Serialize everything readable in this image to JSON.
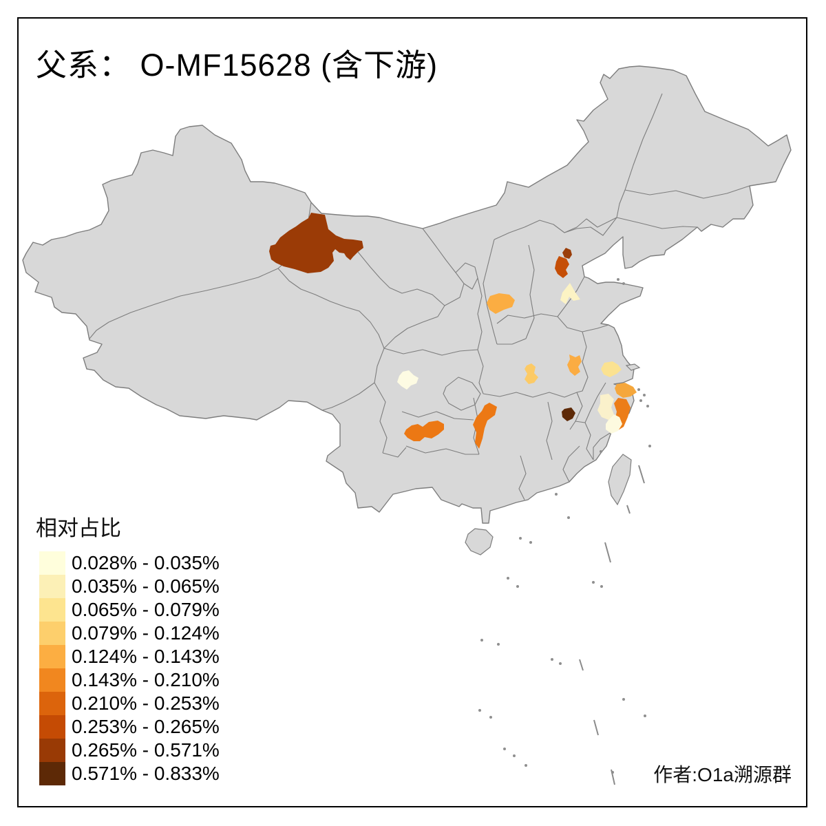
{
  "title": "父系：  O-MF15628 (含下游)",
  "attribution": "作者:O1a溯源群",
  "legend": {
    "title": "相对占比",
    "classes": [
      {
        "label": "0.028% - 0.035%",
        "color": "#FFFEDC"
      },
      {
        "label": "0.035% - 0.065%",
        "color": "#FCF0B6"
      },
      {
        "label": "0.065% - 0.079%",
        "color": "#FDE48F"
      },
      {
        "label": "0.079% - 0.124%",
        "color": "#FDCF6C"
      },
      {
        "label": "0.124% - 0.143%",
        "color": "#FCAE42"
      },
      {
        "label": "0.143% - 0.210%",
        "color": "#F1871F"
      },
      {
        "label": "0.210% - 0.253%",
        "color": "#DC640C"
      },
      {
        "label": "0.253% - 0.265%",
        "color": "#C54B04"
      },
      {
        "label": "0.265% - 0.571%",
        "color": "#993A05"
      },
      {
        "label": "0.571% - 0.833%",
        "color": "#5D2906"
      }
    ]
  },
  "map": {
    "base_color": "#D8D8D8",
    "border_color": "#7D7D7D",
    "sea_color": "#FFFFFF",
    "regions": [
      {
        "id": "hami-jiuquan",
        "color": "#9B3B06",
        "value_range": "0.265% - 0.571%"
      },
      {
        "id": "beijing",
        "color": "#9A3D08",
        "value_range": "0.265% - 0.571%"
      },
      {
        "id": "hebei-central",
        "color": "#C54E06",
        "value_range": "0.253% - 0.265%"
      },
      {
        "id": "shijiazhuang",
        "color": "#FCF3C4",
        "value_range": "0.035% - 0.065%"
      },
      {
        "id": "shanxi-west",
        "color": "#FBAD42",
        "value_range": "0.124% - 0.143%"
      },
      {
        "id": "henan-south",
        "color": "#FCCA66",
        "value_range": "0.079% - 0.124%"
      },
      {
        "id": "anhui-central",
        "color": "#FBAC42",
        "value_range": "0.124% - 0.143%"
      },
      {
        "id": "jiangsu-south",
        "color": "#FBE291",
        "value_range": "0.065% - 0.079%"
      },
      {
        "id": "chengdu",
        "color": "#FDFBE3",
        "value_range": "0.028% - 0.035%"
      },
      {
        "id": "guizhou-northwest",
        "color": "#EC7814",
        "value_range": "0.143% - 0.210%"
      },
      {
        "id": "hunan-west",
        "color": "#EC7814",
        "value_range": "0.143% - 0.210%"
      },
      {
        "id": "jiangxi-northeast",
        "color": "#5E2A08",
        "value_range": "0.571% - 0.833%"
      },
      {
        "id": "zhejiang-north",
        "color": "#F5A73C",
        "value_range": "0.124% - 0.143%"
      },
      {
        "id": "zhejiang-coast",
        "color": "#EC7D18",
        "value_range": "0.143% - 0.210%"
      },
      {
        "id": "zhejiang-west",
        "color": "#FAF1CB",
        "value_range": "0.035% - 0.065%"
      },
      {
        "id": "zhejiang-south",
        "color": "#FDFADF",
        "value_range": "0.028% - 0.035%"
      }
    ]
  },
  "chart_data": {
    "type": "choropleth-map",
    "title": "父系：  O-MF15628 (含下游)",
    "legend_title": "相对占比",
    "legend_position": "bottom-left",
    "class_breaks": [
      "0.028%",
      "0.035%",
      "0.065%",
      "0.079%",
      "0.124%",
      "0.143%",
      "0.210%",
      "0.253%",
      "0.265%",
      "0.571%",
      "0.833%"
    ],
    "highlighted_regions": [
      {
        "id": "hami-jiuquan",
        "value_range": "0.265% - 0.571%"
      },
      {
        "id": "beijing",
        "value_range": "0.265% - 0.571%"
      },
      {
        "id": "hebei-central",
        "value_range": "0.253% - 0.265%"
      },
      {
        "id": "shijiazhuang",
        "value_range": "0.035% - 0.065%"
      },
      {
        "id": "shanxi-west",
        "value_range": "0.124% - 0.143%"
      },
      {
        "id": "henan-south",
        "value_range": "0.079% - 0.124%"
      },
      {
        "id": "anhui-central",
        "value_range": "0.124% - 0.143%"
      },
      {
        "id": "jiangsu-south",
        "value_range": "0.065% - 0.079%"
      },
      {
        "id": "chengdu",
        "value_range": "0.028% - 0.035%"
      },
      {
        "id": "guizhou-northwest",
        "value_range": "0.143% - 0.210%"
      },
      {
        "id": "hunan-west",
        "value_range": "0.143% - 0.210%"
      },
      {
        "id": "jiangxi-northeast",
        "value_range": "0.571% - 0.833%"
      },
      {
        "id": "zhejiang-north",
        "value_range": "0.124% - 0.143%"
      },
      {
        "id": "zhejiang-coast",
        "value_range": "0.143% - 0.210%"
      },
      {
        "id": "zhejiang-west",
        "value_range": "0.035% - 0.065%"
      },
      {
        "id": "zhejiang-south",
        "value_range": "0.028% - 0.035%"
      }
    ]
  }
}
